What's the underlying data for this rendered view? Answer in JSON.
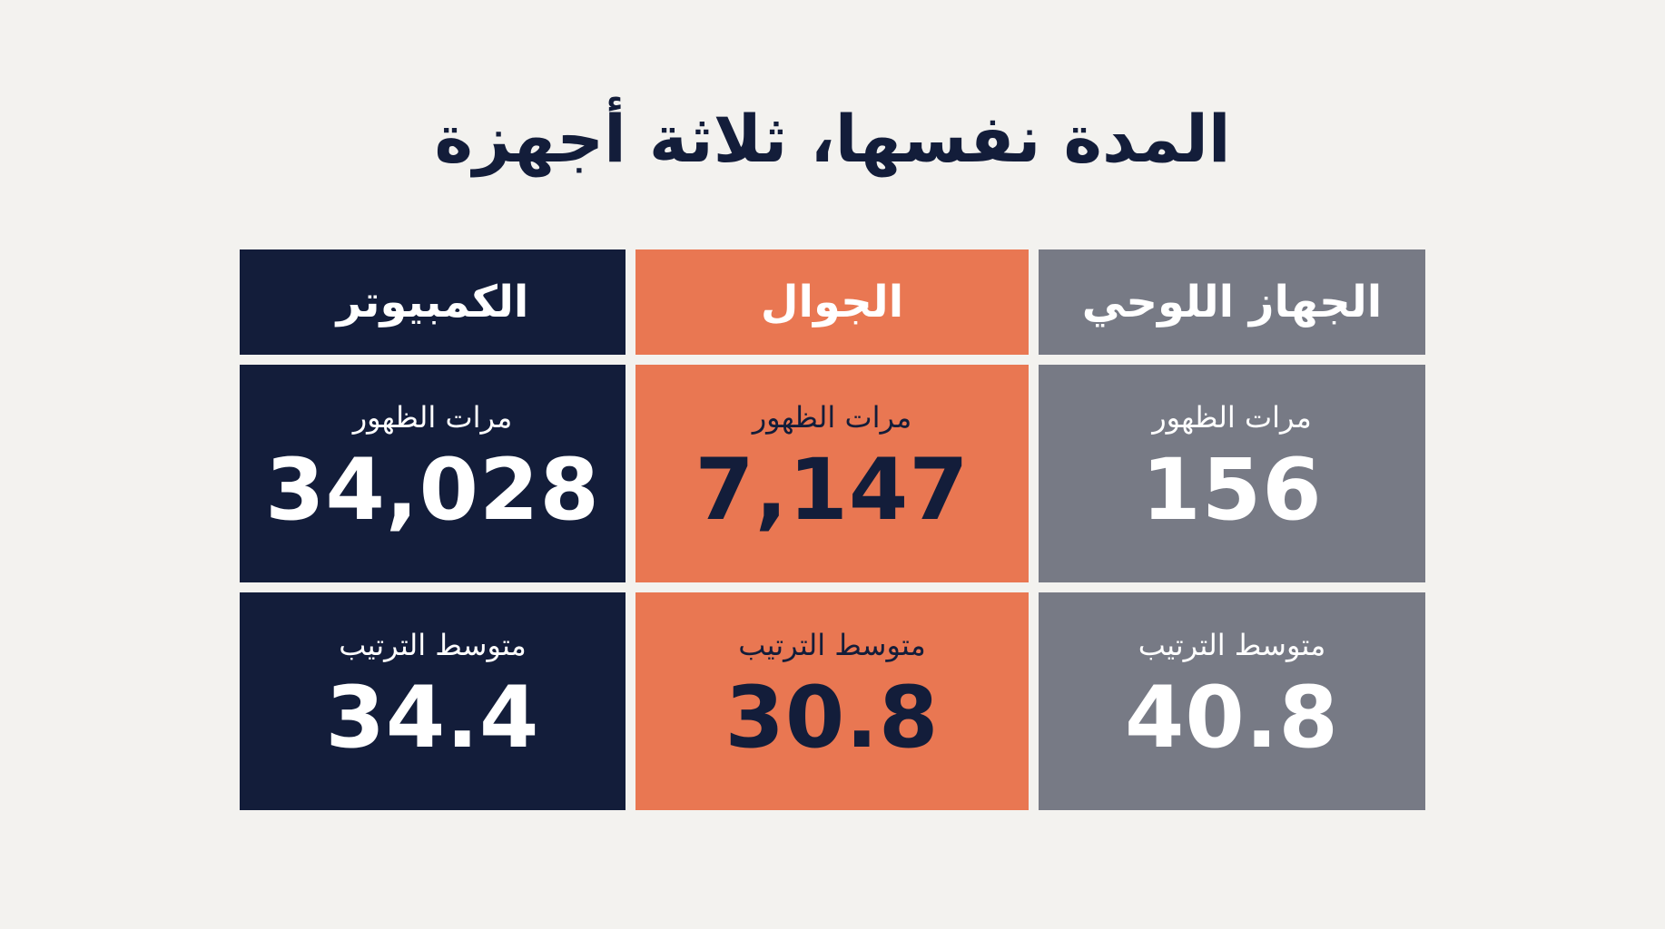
{
  "title": "المدة نفسها، ثلاثة أجهزة",
  "devices": [
    {
      "name": "الكمبيوتر",
      "bg": "#131d3a",
      "fg": "#ffffff",
      "appearances_label": "مرات الظهور",
      "appearances_value": "34,028",
      "avg_rank_label": "متوسط الترتيب",
      "avg_rank_value": "34.4"
    },
    {
      "name": "الجوال",
      "bg": "#e97752",
      "fg": "#131d3a",
      "header_fg": "#ffffff",
      "appearances_label": "مرات الظهور",
      "appearances_value": "7,147",
      "avg_rank_label": "متوسط الترتيب",
      "avg_rank_value": "30.8"
    },
    {
      "name": "الجهاز اللوحي",
      "bg": "#777a85",
      "fg": "#ffffff",
      "appearances_label": "مرات الظهور",
      "appearances_value": "156",
      "avg_rank_label": "متوسط الترتيب",
      "avg_rank_value": "40.8"
    }
  ]
}
